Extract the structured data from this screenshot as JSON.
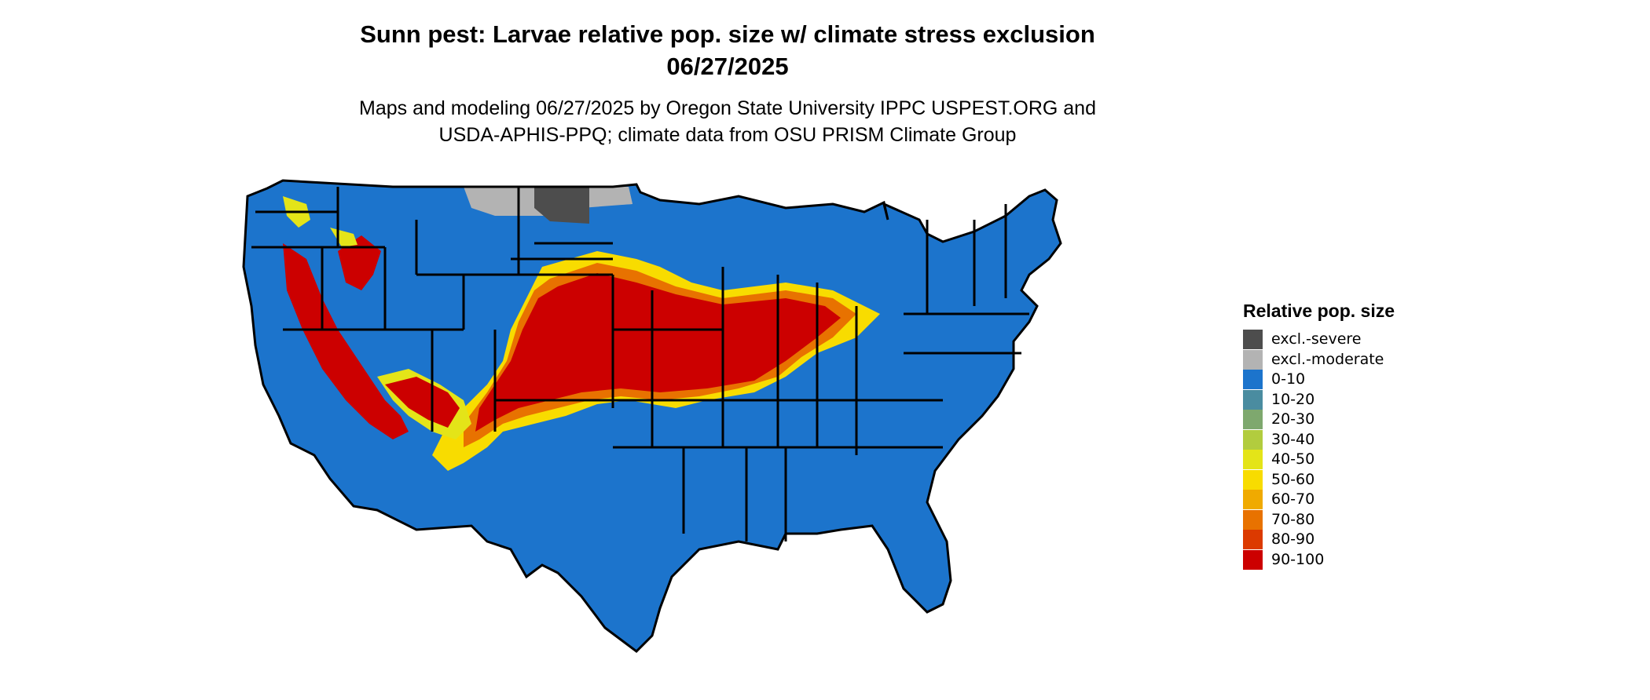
{
  "title_line1": "Sunn pest: Larvae relative pop. size w/ climate stress exclusion",
  "title_line2": "06/27/2025",
  "subtitle_line1": "Maps and modeling 06/27/2025 by Oregon State University IPPC USPEST.ORG and",
  "subtitle_line2": "USDA-APHIS-PPQ; climate data from OSU PRISM Climate Group",
  "legend": {
    "title": "Relative pop. size",
    "items": [
      {
        "label": "excl.-severe",
        "color": "#4d4d4d"
      },
      {
        "label": "excl.-moderate",
        "color": "#b3b3b3"
      },
      {
        "label": "0-10",
        "color": "#1c74cc"
      },
      {
        "label": "10-20",
        "color": "#4a8ca0"
      },
      {
        "label": "20-30",
        "color": "#7ea86e"
      },
      {
        "label": "30-40",
        "color": "#b2cc3e"
      },
      {
        "label": "40-50",
        "color": "#e4e418"
      },
      {
        "label": "50-60",
        "color": "#f8dc00"
      },
      {
        "label": "60-70",
        "color": "#f0aa00"
      },
      {
        "label": "70-80",
        "color": "#e87200"
      },
      {
        "label": "80-90",
        "color": "#dc3a00"
      },
      {
        "label": "90-100",
        "color": "#cc0000"
      }
    ]
  }
}
